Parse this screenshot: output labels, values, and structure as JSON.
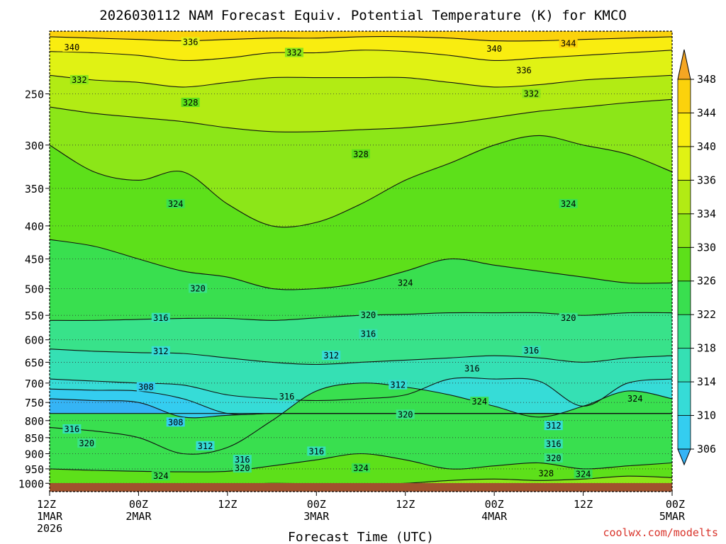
{
  "page_title": "2026030112 NAM Forecast Equiv. Potential Temperature (K) for KMCO",
  "credit": "coolwx.com/modelts",
  "colors": {
    "brand_credit": "#d9342b",
    "ground": "#a0522d",
    "contour": "#111111"
  },
  "chart_data": {
    "type": "heatmap",
    "title": "2026030112 NAM Forecast Equiv. Potential Temperature (K) for KMCO",
    "xlabel": "Forecast Time (UTC)",
    "ylabel": "",
    "x": [
      0,
      6,
      12,
      18,
      24,
      30,
      36,
      42,
      48,
      54,
      60,
      66,
      72,
      78,
      84
    ],
    "x_unit": "hours after 2026-03-01 12Z",
    "xlim": [
      0,
      84
    ],
    "x_ticks": [
      {
        "value": 0,
        "line1": "12Z",
        "line2": "1MAR",
        "line3": "2026"
      },
      {
        "value": 12,
        "line1": "00Z",
        "line2": "2MAR",
        "line3": ""
      },
      {
        "value": 24,
        "line1": "12Z",
        "line2": "",
        "line3": ""
      },
      {
        "value": 36,
        "line1": "00Z",
        "line2": "3MAR",
        "line3": ""
      },
      {
        "value": 48,
        "line1": "12Z",
        "line2": "",
        "line3": ""
      },
      {
        "value": 60,
        "line1": "00Z",
        "line2": "4MAR",
        "line3": ""
      },
      {
        "value": 72,
        "line1": "12Z",
        "line2": "",
        "line3": ""
      },
      {
        "value": 84,
        "line1": "00Z",
        "line2": "5MAR",
        "line3": ""
      }
    ],
    "y_log_pressure": true,
    "y_inverted": true,
    "ylim": [
      1030,
      200
    ],
    "y_ticks": [
      250,
      300,
      350,
      400,
      450,
      500,
      550,
      600,
      650,
      700,
      750,
      800,
      850,
      900,
      950,
      1000
    ],
    "grid": true,
    "colorbar": {
      "levels": [
        306,
        310,
        314,
        318,
        322,
        326,
        330,
        334,
        336,
        340,
        344,
        348
      ],
      "colors": [
        "#35b4f5",
        "#34cdf0",
        "#36dcd7",
        "#35e0b4",
        "#38e28a",
        "#39df4f",
        "#5de01a",
        "#8ce618",
        "#b2eb14",
        "#e0f214",
        "#f9ed10",
        "#fbd20c",
        "#f5a623"
      ],
      "extend": "both"
    },
    "fill_layers": [
      {
        "level": 302,
        "pressures": [
          780,
          780,
          780,
          780,
          780,
          780,
          780,
          780,
          780,
          780,
          780,
          780,
          780,
          780,
          780
        ]
      },
      {
        "level": 306,
        "pressures": [
          740,
          745,
          750,
          790,
          785,
          780,
          780,
          780,
          780,
          780,
          780,
          780,
          780,
          780,
          780
        ]
      },
      {
        "level": 310,
        "pressures": [
          715,
          718,
          720,
          740,
          780,
          780,
          780,
          780,
          780,
          780,
          780,
          780,
          780,
          780,
          780
        ]
      },
      {
        "level": 314,
        "pressures": [
          690,
          695,
          700,
          705,
          730,
          740,
          745,
          740,
          730,
          690,
          690,
          695,
          760,
          700,
          690
        ]
      },
      {
        "level": 318,
        "pressures": [
          620,
          625,
          628,
          630,
          640,
          650,
          655,
          650,
          645,
          640,
          635,
          640,
          650,
          640,
          635
        ]
      },
      {
        "level": 322,
        "pressures": [
          560,
          560,
          558,
          556,
          556,
          560,
          555,
          550,
          548,
          545,
          545,
          545,
          550,
          545,
          545
        ]
      },
      {
        "level": 326,
        "pressures": [
          420,
          430,
          450,
          470,
          480,
          500,
          500,
          490,
          470,
          450,
          460,
          470,
          480,
          490,
          490
        ]
      },
      {
        "level": 330,
        "pressures": [
          300,
          330,
          340,
          330,
          370,
          400,
          395,
          370,
          340,
          320,
          300,
          290,
          300,
          310,
          330
        ]
      },
      {
        "level": 334,
        "pressures": [
          262,
          268,
          272,
          276,
          282,
          286,
          286,
          284,
          282,
          278,
          272,
          266,
          262,
          258,
          255
        ]
      },
      {
        "level": 336,
        "pressures": [
          234,
          238,
          240,
          244,
          240,
          236,
          236,
          236,
          236,
          240,
          244,
          242,
          238,
          236,
          234
        ]
      },
      {
        "level": 340,
        "pressures": [
          215,
          216,
          218,
          222,
          220,
          216,
          216,
          214,
          215,
          218,
          222,
          220,
          218,
          216,
          214
        ]
      },
      {
        "level": 344,
        "pressures": [
          204,
          205,
          206,
          207,
          206,
          205,
          205,
          204,
          204,
          205,
          207,
          207,
          206,
          205,
          204
        ]
      }
    ],
    "low_level_patches": [
      {
        "level": 322,
        "pressures_top": [
          820,
          830,
          850,
          900,
          880,
          800,
          720,
          700,
          710,
          730,
          760,
          790,
          760,
          720,
          740
        ]
      },
      {
        "level": 326,
        "pressures_top": [
          950,
          955,
          958,
          960,
          958,
          940,
          920,
          900,
          920,
          950,
          940,
          930,
          950,
          940,
          930
        ]
      },
      {
        "level": 330,
        "pressures_top": [
          1005,
          1008,
          1010,
          1010,
          1006,
          1000,
          1002,
          1004,
          1000,
          990,
          985,
          990,
          985,
          975,
          980
        ]
      }
    ],
    "surface_pressure": 1012,
    "contour_labels": [
      {
        "text": "340",
        "x": 3,
        "p": 212
      },
      {
        "text": "336",
        "x": 19,
        "p": 208
      },
      {
        "text": "332",
        "x": 33,
        "p": 216
      },
      {
        "text": "340",
        "x": 60,
        "p": 213
      },
      {
        "text": "344",
        "x": 70,
        "p": 209
      },
      {
        "text": "336",
        "x": 64,
        "p": 230
      },
      {
        "text": "332",
        "x": 4,
        "p": 238
      },
      {
        "text": "328",
        "x": 19,
        "p": 258
      },
      {
        "text": "332",
        "x": 65,
        "p": 250
      },
      {
        "text": "328",
        "x": 42,
        "p": 310
      },
      {
        "text": "324",
        "x": 17,
        "p": 370
      },
      {
        "text": "324",
        "x": 70,
        "p": 370
      },
      {
        "text": "324",
        "x": 48,
        "p": 490
      },
      {
        "text": "320",
        "x": 20,
        "p": 500
      },
      {
        "text": "320",
        "x": 43,
        "p": 550
      },
      {
        "text": "320",
        "x": 70,
        "p": 555
      },
      {
        "text": "316",
        "x": 15,
        "p": 555
      },
      {
        "text": "316",
        "x": 43,
        "p": 588
      },
      {
        "text": "316",
        "x": 65,
        "p": 624
      },
      {
        "text": "312",
        "x": 15,
        "p": 625
      },
      {
        "text": "312",
        "x": 38,
        "p": 635
      },
      {
        "text": "316",
        "x": 57,
        "p": 665
      },
      {
        "text": "308",
        "x": 13,
        "p": 710
      },
      {
        "text": "312",
        "x": 47,
        "p": 705
      },
      {
        "text": "316",
        "x": 32,
        "p": 735
      },
      {
        "text": "324",
        "x": 58,
        "p": 748
      },
      {
        "text": "324",
        "x": 79,
        "p": 740
      },
      {
        "text": "320",
        "x": 48,
        "p": 783
      },
      {
        "text": "308",
        "x": 17,
        "p": 805
      },
      {
        "text": "316",
        "x": 3,
        "p": 825
      },
      {
        "text": "312",
        "x": 68,
        "p": 815
      },
      {
        "text": "320",
        "x": 5,
        "p": 868
      },
      {
        "text": "312",
        "x": 21,
        "p": 876
      },
      {
        "text": "316",
        "x": 36,
        "p": 893
      },
      {
        "text": "316",
        "x": 68,
        "p": 870
      },
      {
        "text": "316",
        "x": 26,
        "p": 920
      },
      {
        "text": "320",
        "x": 26,
        "p": 948
      },
      {
        "text": "324",
        "x": 42,
        "p": 948
      },
      {
        "text": "320",
        "x": 68,
        "p": 915
      },
      {
        "text": "324",
        "x": 15,
        "p": 975
      },
      {
        "text": "328",
        "x": 67,
        "p": 966
      },
      {
        "text": "324",
        "x": 72,
        "p": 968
      }
    ]
  }
}
